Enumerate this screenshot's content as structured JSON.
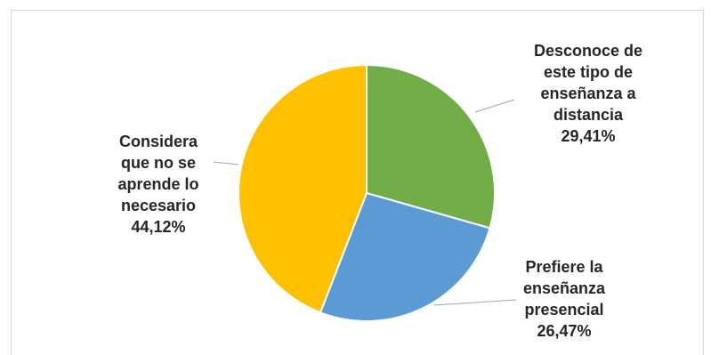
{
  "chart_data": {
    "type": "pie",
    "title": "",
    "slices": [
      {
        "label_lines": [
          "Desconoce de",
          "este tipo de",
          "enseñanza a",
          "distancia"
        ],
        "value_text": "29,41%",
        "value": 29.41,
        "color": "#70ad47"
      },
      {
        "label_lines": [
          "Prefiere la",
          "enseñanza",
          "presencial"
        ],
        "value_text": "26,47%",
        "value": 26.47,
        "color": "#5b9bd5"
      },
      {
        "label_lines": [
          "Considera",
          "que no se",
          "aprende lo",
          "necesario"
        ],
        "value_text": "44,12%",
        "value": 44.12,
        "color": "#ffc000"
      }
    ],
    "legend": "none"
  }
}
